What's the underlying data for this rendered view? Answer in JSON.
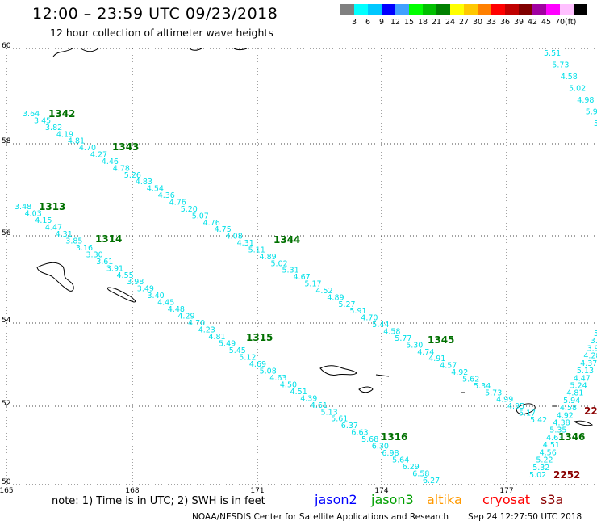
{
  "header": {
    "title": "12:00 – 23:59 UTC 09/23/2018",
    "subtitle": "12 hour collection of altimeter wave heights"
  },
  "legend": {
    "colors": [
      "#808080",
      "#00ffff",
      "#00c8ff",
      "#0000ff",
      "#40a0ff",
      "#00ff00",
      "#00c000",
      "#008000",
      "#ffff00",
      "#ffc800",
      "#ff8000",
      "#ff0000",
      "#c00000",
      "#800000",
      "#a000a0",
      "#ff00ff",
      "#ffc0ff",
      "#000000"
    ],
    "labels": [
      "3",
      "6",
      "9",
      "12",
      "15",
      "18",
      "21",
      "24",
      "27",
      "30",
      "33",
      "36",
      "39",
      "42",
      "45",
      "70"
    ],
    "unit": "(ft)"
  },
  "map": {
    "x_ticks": [
      "165",
      "168",
      "171",
      "174",
      "177"
    ],
    "y_ticks": [
      "60",
      "58",
      "56",
      "54",
      "52",
      "50"
    ],
    "grid": true,
    "track_color": "#00e0e8",
    "time_color": "#007000",
    "time_color_dark": "#8b0000",
    "land_icon": "coastline-outline"
  },
  "tracks": [
    {
      "name": "track-a",
      "values": [
        "3.64",
        "3.45",
        "3.82",
        "4.19",
        "4.81",
        "4.70",
        "4.27",
        "4.46",
        "4.78",
        "5.26",
        "4.83",
        "4.54",
        "4.36",
        "4.76",
        "5.20",
        "5.07",
        "4.76",
        "4.75",
        "4.08",
        "4.31",
        "5.11",
        "4.89",
        "5.02",
        "5.31",
        "4.67",
        "5.17",
        "4.52",
        "4.89",
        "5.27",
        "5.91",
        "4.70",
        "5.44",
        "4.58",
        "5.77",
        "5.30",
        "4.74",
        "4.91",
        "4.57",
        "4.92",
        "5.62",
        "5.34",
        "5.73",
        "4.99",
        "4.95",
        "5.17",
        "5.42"
      ]
    },
    {
      "name": "track-b",
      "values": [
        "3.48",
        "4.03",
        "4.15",
        "4.47",
        "4.31",
        "3.85",
        "3.16",
        "3.30",
        "3.61",
        "3.91",
        "4.55",
        "3.98",
        "3.49",
        "3.40",
        "4.45",
        "4.48",
        "4.29",
        "4.70",
        "4.23",
        "4.81",
        "5.49",
        "5.45",
        "5.12",
        "4.69",
        "5.08",
        "4.63",
        "4.50",
        "4.51",
        "4.39",
        "4.61",
        "5.13",
        "5.61",
        "6.37",
        "6.63",
        "5.68",
        "6.30",
        "6.98",
        "5.64",
        "6.29",
        "6.58",
        "6.27"
      ]
    },
    {
      "name": "track-c",
      "values": [
        "5.51",
        "5.73",
        "4.58",
        "5.02",
        "4.98",
        "5.90",
        "5.19"
      ]
    },
    {
      "name": "track-d",
      "values": [
        "5.02",
        "5.32",
        "5.22",
        "4.56",
        "4.51",
        "4.63",
        "5.35",
        "4.38",
        "4.92",
        "4.58",
        "5.94",
        "4.81",
        "5.24",
        "4.47",
        "5.13",
        "4.37",
        "4.28",
        "3.98",
        "3.5",
        "5."
      ]
    }
  ],
  "times": [
    {
      "label": "1342"
    },
    {
      "label": "1343"
    },
    {
      "label": "1313"
    },
    {
      "label": "1314"
    },
    {
      "label": "1344"
    },
    {
      "label": "1315"
    },
    {
      "label": "1345"
    },
    {
      "label": "1316"
    },
    {
      "label": "1346"
    },
    {
      "label": "2252"
    },
    {
      "label": "22"
    }
  ],
  "footer": {
    "note": "note:  1) Time is in UTC;  2) SWH is in feet",
    "satellites": [
      {
        "name": "jason2",
        "color": "#0000ff"
      },
      {
        "name": "jason3",
        "color": "#00a000"
      },
      {
        "name": "altika",
        "color": "#ff9900"
      },
      {
        "name": "cryosat",
        "color": "#ff0000"
      },
      {
        "name": "s3a",
        "color": "#8b0000"
      }
    ],
    "credit": "NOAA/NESDIS Center for Satellite Applications and Research",
    "stamp": "Sep 24 12:27:50 UTC 2018"
  }
}
